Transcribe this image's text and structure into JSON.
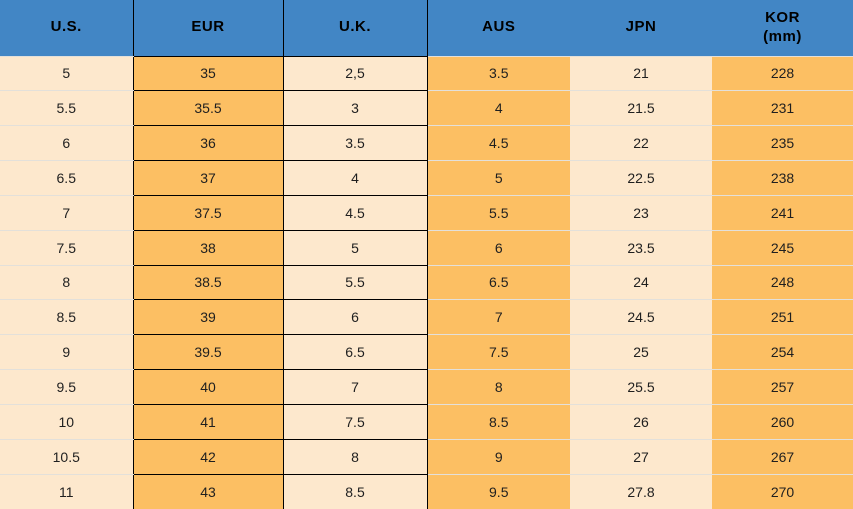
{
  "chart_data": {
    "type": "table",
    "columns": [
      {
        "key": "us",
        "label": "U.S."
      },
      {
        "key": "eur",
        "label": "EUR"
      },
      {
        "key": "uk",
        "label": "U.K."
      },
      {
        "key": "aus",
        "label": "AUS"
      },
      {
        "key": "jpn",
        "label": "JPN"
      },
      {
        "key": "kor",
        "label": "KOR",
        "sub": "(mm)"
      }
    ],
    "rows": [
      [
        "5",
        "35",
        "2,5",
        "3.5",
        "21",
        "228"
      ],
      [
        "5.5",
        "35.5",
        "3",
        "4",
        "21.5",
        "231"
      ],
      [
        "6",
        "36",
        "3.5",
        "4.5",
        "22",
        "235"
      ],
      [
        "6.5",
        "37",
        "4",
        "5",
        "22.5",
        "238"
      ],
      [
        "7",
        "37.5",
        "4.5",
        "5.5",
        "23",
        "241"
      ],
      [
        "7.5",
        "38",
        "5",
        "6",
        "23.5",
        "245"
      ],
      [
        "8",
        "38.5",
        "5.5",
        "6.5",
        "24",
        "248"
      ],
      [
        "8.5",
        "39",
        "6",
        "7",
        "24.5",
        "251"
      ],
      [
        "9",
        "39.5",
        "6.5",
        "7.5",
        "25",
        "254"
      ],
      [
        "9.5",
        "40",
        "7",
        "8",
        "25.5",
        "257"
      ],
      [
        "10",
        "41",
        "7.5",
        "8.5",
        "26",
        "260"
      ],
      [
        "10.5",
        "42",
        "8",
        "9",
        "27",
        "267"
      ],
      [
        "11",
        "43",
        "8.5",
        "9.5",
        "27.8",
        "270"
      ]
    ]
  },
  "colors": {
    "header_bg": "#4286c5",
    "header_text": "#000000",
    "cream_bg": "#fde8cd",
    "orange_bg": "#fcbf63",
    "cell_text": "#1f1f1f",
    "black_border": "#000000",
    "light_separator": "#e3e0da"
  }
}
